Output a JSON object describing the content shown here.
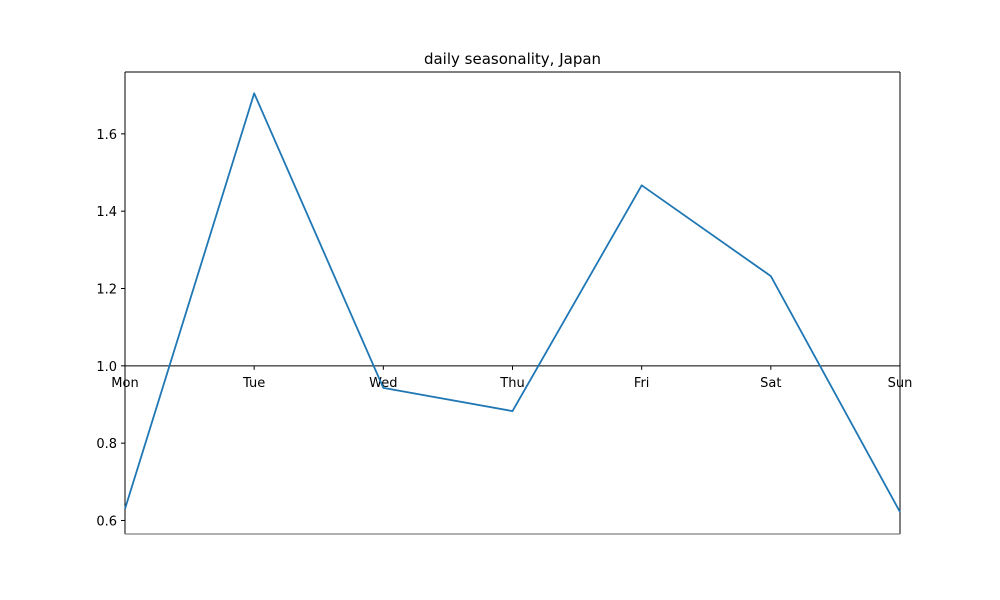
{
  "chart_data": {
    "type": "line",
    "title": "daily seasonality, Japan",
    "xlabel": "",
    "ylabel": "",
    "categories": [
      "Mon",
      "Tue",
      "Wed",
      "Thu",
      "Fri",
      "Sat",
      "Sun"
    ],
    "series": [
      {
        "values": [
          0.63,
          1.705,
          0.943,
          0.883,
          1.467,
          1.232,
          0.622
        ],
        "color": "#1f77b4"
      }
    ],
    "ylim": [
      0.565,
      1.76
    ],
    "yticks": [
      "0.6",
      "0.8",
      "1.0",
      "1.2",
      "1.4",
      "1.6"
    ],
    "baseline": 1.0,
    "grid": false,
    "legend": "none"
  }
}
